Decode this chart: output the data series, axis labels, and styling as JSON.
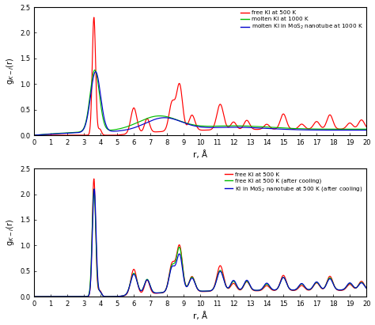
{
  "top_legend": [
    {
      "label": "free KI at 500 K",
      "color": "#ff0000"
    },
    {
      "label": "molten KI at 1000 K",
      "color": "#00bb00"
    },
    {
      "label": "molten KI in MoS$_2$ nanotube at \\textbf{1}000 K",
      "color": "#0000cc"
    }
  ],
  "bottom_legend": [
    {
      "label": "free KI at 500 K",
      "color": "#ff0000"
    },
    {
      "label": "free KI at 500 K (after cooling)",
      "color": "#00bb00"
    },
    {
      "label": "KI in MoS$_2$ nanotube at 500 K (after cooling)",
      "color": "#0000cc"
    }
  ],
  "top_legend_labels": [
    "free KI at 500 K",
    "molten KI at 1000 K",
    "molten KI in MoS$_2$ nanotube at 1000 K"
  ],
  "bottom_legend_labels": [
    "free KI at 500 K",
    "free KI at 500 K (after cooling)",
    "KI in MoS$_2$ nanotube at 500 K (after cooling)"
  ],
  "ylabel": "g$_{K-I}$(r)",
  "xlabel": "r, Å",
  "xlim": [
    0,
    20
  ],
  "ylim": [
    0,
    2.5
  ],
  "xticks": [
    0,
    1,
    2,
    3,
    4,
    5,
    6,
    7,
    8,
    9,
    10,
    11,
    12,
    13,
    14,
    15,
    16,
    17,
    18,
    19,
    20
  ],
  "yticks": [
    0.0,
    0.5,
    1.0,
    1.5,
    2.0,
    2.5
  ]
}
